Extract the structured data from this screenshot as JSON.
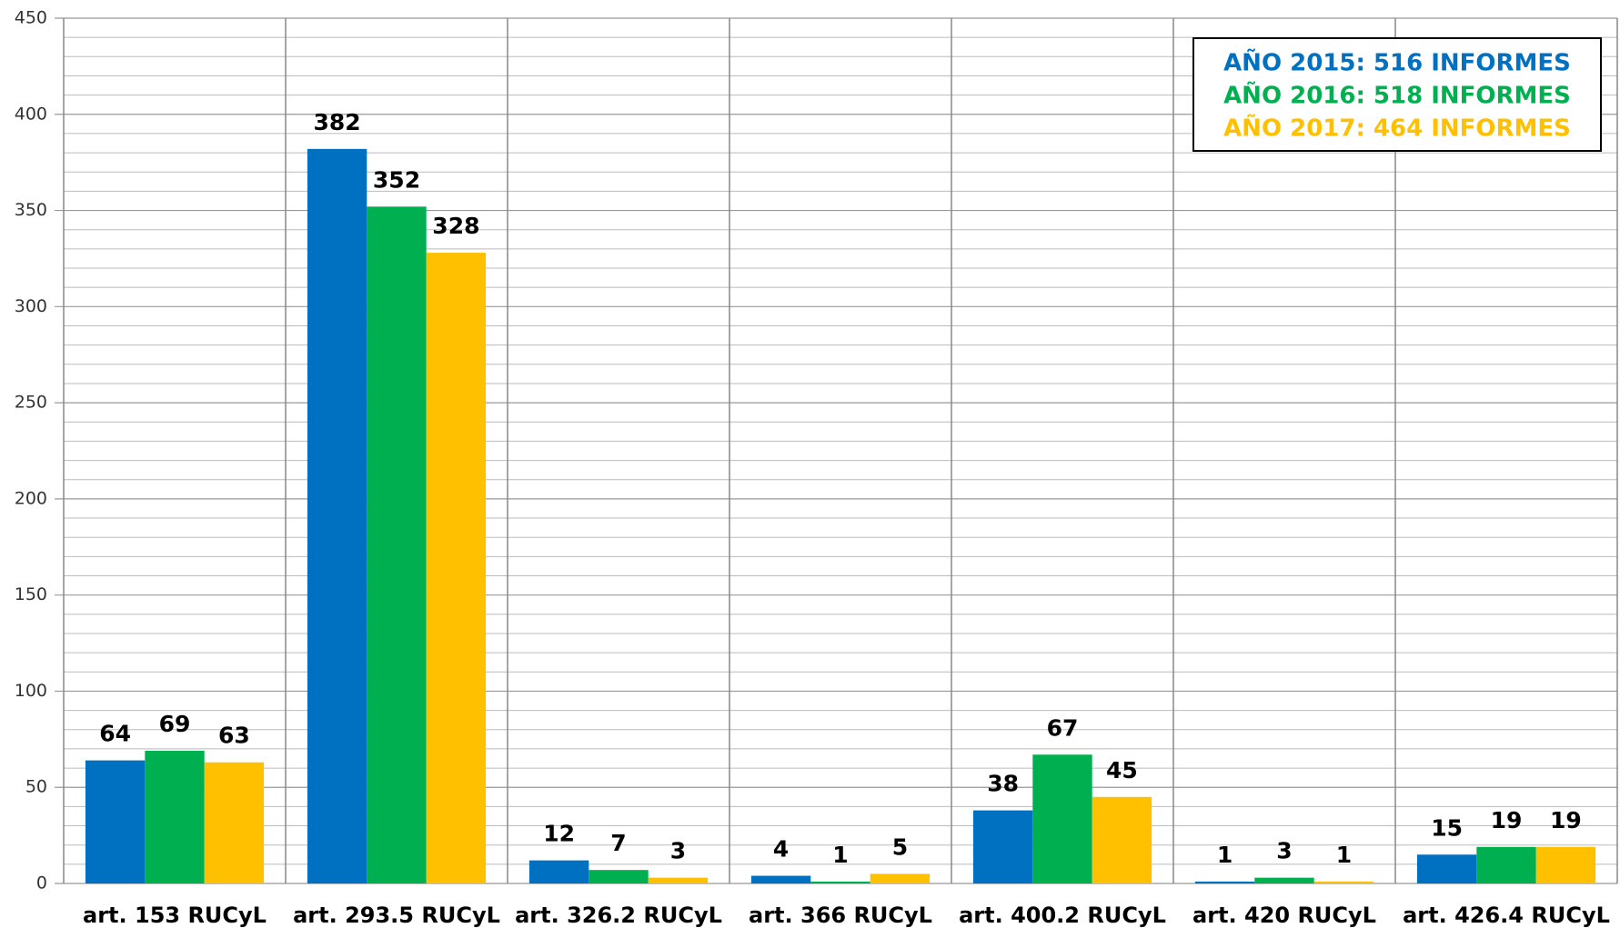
{
  "chart_data": {
    "type": "bar",
    "categories": [
      "art. 153 RUCyL",
      "art. 293.5 RUCyL",
      "art. 326.2 RUCyL",
      "art. 366 RUCyL",
      "art. 400.2 RUCyL",
      "art. 420 RUCyL",
      "art. 426.4 RUCyL"
    ],
    "series": [
      {
        "name": "AÑO 2015: 516 INFORMES",
        "color": "#0070c0",
        "values": [
          64,
          382,
          12,
          4,
          38,
          1,
          15
        ]
      },
      {
        "name": "AÑO 2016: 518 INFORMES",
        "color": "#00b050",
        "values": [
          69,
          352,
          7,
          1,
          67,
          3,
          19
        ]
      },
      {
        "name": "AÑO 2017: 464 INFORMES",
        "color": "#ffc000",
        "values": [
          63,
          328,
          3,
          5,
          45,
          1,
          19
        ]
      }
    ],
    "ylim": [
      0,
      450
    ],
    "yticks": [
      0,
      50,
      100,
      150,
      200,
      250,
      300,
      350,
      400,
      450
    ],
    "grid": true,
    "legend": "upper right"
  }
}
